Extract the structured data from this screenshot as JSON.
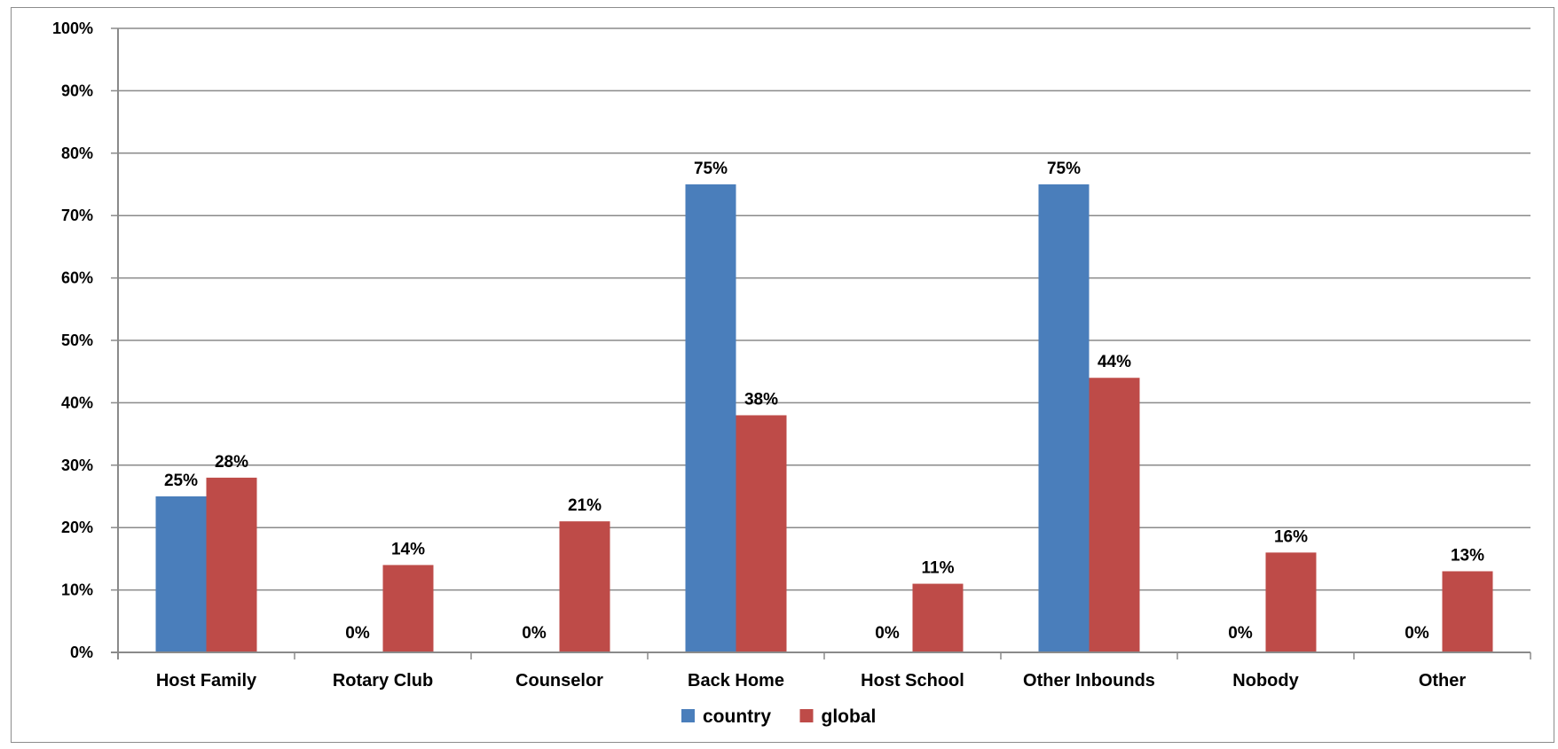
{
  "chart_data": {
    "type": "bar",
    "categories": [
      "Host Family",
      "Rotary Club",
      "Counselor",
      "Back Home",
      "Host School",
      "Other Inbounds",
      "Nobody",
      "Other"
    ],
    "series": [
      {
        "name": "country",
        "color": "#4a7ebb",
        "values": [
          25,
          0,
          0,
          75,
          0,
          75,
          0,
          0
        ],
        "labels": [
          "25%",
          "0%",
          "0%",
          "75%",
          "0%",
          "75%",
          "0%",
          "0%"
        ]
      },
      {
        "name": "global",
        "color": "#be4b48",
        "values": [
          28,
          14,
          21,
          38,
          11,
          44,
          16,
          13
        ],
        "labels": [
          "28%",
          "14%",
          "21%",
          "38%",
          "11%",
          "44%",
          "16%",
          "13%"
        ]
      }
    ],
    "yticks": [
      "0%",
      "10%",
      "20%",
      "30%",
      "40%",
      "50%",
      "60%",
      "70%",
      "80%",
      "90%",
      "100%"
    ],
    "ylim": [
      0,
      100
    ],
    "grid": true,
    "legend_position": "bottom"
  }
}
